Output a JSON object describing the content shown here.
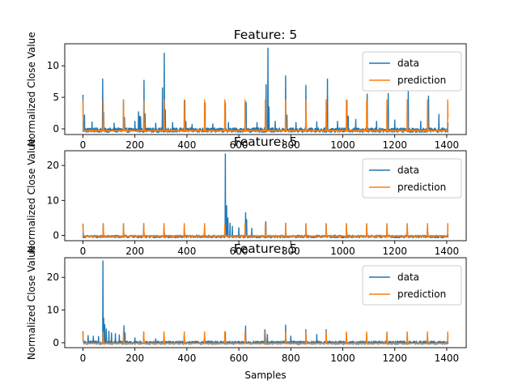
{
  "figure": {
    "xlabel": "Samples"
  },
  "chart_data": [
    {
      "type": "line",
      "title": "Feature: 5",
      "ylabel": "Normalized Close Value",
      "xlim": [
        -70,
        1475
      ],
      "ylim": [
        -0.9,
        13.5
      ],
      "xticks": [
        0,
        200,
        400,
        600,
        800,
        1000,
        1200,
        1400
      ],
      "yticks": [
        0,
        5,
        10
      ],
      "legend_position": "upper-right",
      "series": [
        {
          "name": "data",
          "color": "#1f77b4",
          "base": -0.2,
          "noise": 0.35,
          "spikes": [
            [
              0,
              5.4
            ],
            [
              6,
              2.2
            ],
            [
              35,
              1.1
            ],
            [
              76,
              7.9
            ],
            [
              80,
              2.6
            ],
            [
              120,
              0.9
            ],
            [
              156,
              4.6
            ],
            [
              160,
              1.8
            ],
            [
              200,
              1.2
            ],
            [
              214,
              2.7
            ],
            [
              218,
              2.0
            ],
            [
              222,
              1.9
            ],
            [
              235,
              7.7
            ],
            [
              239,
              2.4
            ],
            [
              280,
              0.9
            ],
            [
              306,
              6.5
            ],
            [
              313,
              12.0
            ],
            [
              317,
              3.0
            ],
            [
              345,
              1.0
            ],
            [
              392,
              4.5
            ],
            [
              396,
              1.2
            ],
            [
              420,
              0.7
            ],
            [
              470,
              4.1
            ],
            [
              500,
              0.8
            ],
            [
              548,
              4.1
            ],
            [
              560,
              1.0
            ],
            [
              628,
              4.2
            ],
            [
              670,
              1.0
            ],
            [
              705,
              7.0
            ],
            [
              712,
              12.8
            ],
            [
              716,
              3.5
            ],
            [
              740,
              1.2
            ],
            [
              780,
              8.4
            ],
            [
              785,
              2.2
            ],
            [
              820,
              1.0
            ],
            [
              858,
              6.9
            ],
            [
              900,
              1.1
            ],
            [
              941,
              7.9
            ],
            [
              980,
              1.2
            ],
            [
              1016,
              4.5
            ],
            [
              1021,
              2.0
            ],
            [
              1050,
              1.5
            ],
            [
              1094,
              5.5
            ],
            [
              1130,
              1.2
            ],
            [
              1175,
              5.6
            ],
            [
              1200,
              1.4
            ],
            [
              1250,
              4.6
            ],
            [
              1252,
              6.1
            ],
            [
              1300,
              1.2
            ],
            [
              1330,
              5.2
            ],
            [
              1370,
              2.3
            ],
            [
              1405,
              1.0
            ]
          ]
        },
        {
          "name": "prediction",
          "color": "#ff7f0e",
          "base": -0.3,
          "noise": 0.08,
          "period": 78,
          "peak": 4.6
        }
      ]
    },
    {
      "type": "line",
      "title": "Feature: 5",
      "ylabel": "Normalized Close Value",
      "xlim": [
        -70,
        1475
      ],
      "ylim": [
        -1.5,
        24.2
      ],
      "xticks": [
        0,
        200,
        400,
        600,
        800,
        1000,
        1200,
        1400
      ],
      "yticks": [
        0,
        10,
        20
      ],
      "legend_position": "upper-right",
      "series": [
        {
          "name": "data",
          "color": "#1f77b4",
          "base": -0.3,
          "noise": 0.35,
          "spikes": [
            [
              0,
              3.3
            ],
            [
              78,
              3.2
            ],
            [
              156,
              3.2
            ],
            [
              234,
              3.4
            ],
            [
              312,
              3.1
            ],
            [
              390,
              3.0
            ],
            [
              468,
              3.0
            ],
            [
              548,
              23.3
            ],
            [
              553,
              8.5
            ],
            [
              558,
              5.0
            ],
            [
              566,
              3.5
            ],
            [
              575,
              2.6
            ],
            [
              600,
              2.2
            ],
            [
              626,
              6.5
            ],
            [
              630,
              4.5
            ],
            [
              650,
              2.0
            ],
            [
              704,
              3.9
            ],
            [
              780,
              3.5
            ],
            [
              858,
              3.2
            ],
            [
              936,
              3.3
            ],
            [
              1014,
              3.2
            ],
            [
              1092,
              3.1
            ],
            [
              1170,
              3.2
            ],
            [
              1248,
              3.1
            ],
            [
              1326,
              3.0
            ],
            [
              1404,
              0.6
            ]
          ]
        },
        {
          "name": "prediction",
          "color": "#ff7f0e",
          "base": -0.2,
          "noise": 0.1,
          "period": 78,
          "peak": 3.4
        }
      ]
    },
    {
      "type": "line",
      "title": "Feature: 5",
      "ylabel": "Normalized Close Value",
      "xlim": [
        -70,
        1475
      ],
      "ylim": [
        -1.5,
        26.0
      ],
      "xticks": [
        0,
        200,
        400,
        600,
        800,
        1000,
        1200,
        1400
      ],
      "yticks": [
        0,
        10,
        20
      ],
      "legend_position": "upper-right",
      "series": [
        {
          "name": "data",
          "color": "#1f77b4",
          "base": 0.0,
          "noise": 0.5,
          "spikes": [
            [
              0,
              3.5
            ],
            [
              20,
              2.2
            ],
            [
              40,
              2.0
            ],
            [
              60,
              1.9
            ],
            [
              77,
              25.0
            ],
            [
              80,
              7.5
            ],
            [
              84,
              5.5
            ],
            [
              90,
              4.2
            ],
            [
              100,
              3.5
            ],
            [
              110,
              3.0
            ],
            [
              125,
              2.8
            ],
            [
              140,
              2.4
            ],
            [
              158,
              5.2
            ],
            [
              162,
              3.0
            ],
            [
              200,
              1.5
            ],
            [
              234,
              3.3
            ],
            [
              280,
              1.2
            ],
            [
              312,
              3.0
            ],
            [
              390,
              3.1
            ],
            [
              468,
              3.2
            ],
            [
              548,
              3.3
            ],
            [
              626,
              5.1
            ],
            [
              700,
              4.0
            ],
            [
              710,
              2.5
            ],
            [
              780,
              5.4
            ],
            [
              800,
              2.0
            ],
            [
              858,
              4.0
            ],
            [
              900,
              2.5
            ],
            [
              936,
              4.0
            ],
            [
              1014,
              3.0
            ],
            [
              1092,
              2.8
            ],
            [
              1170,
              3.0
            ],
            [
              1248,
              2.9
            ],
            [
              1326,
              2.9
            ],
            [
              1404,
              0.8
            ]
          ]
        },
        {
          "name": "prediction",
          "color": "#ff7f0e",
          "base": -0.2,
          "noise": 0.1,
          "period": 78,
          "peak": 3.3
        }
      ]
    }
  ]
}
